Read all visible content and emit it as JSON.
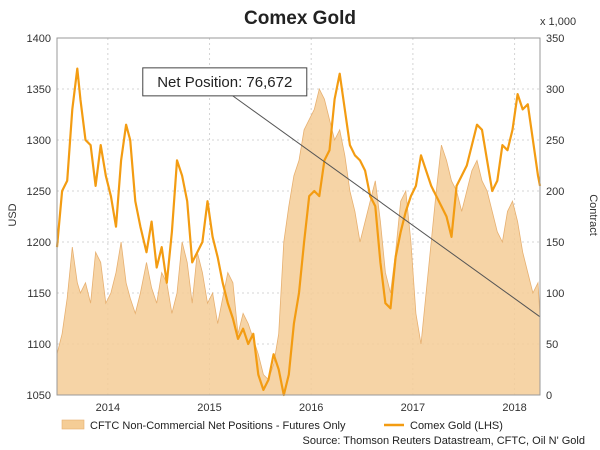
{
  "chart_data": {
    "type": "line",
    "title": "Comex Gold",
    "left_axis": {
      "label": "USD",
      "min": 1050,
      "max": 1400,
      "ticks": [
        1050,
        1100,
        1150,
        1200,
        1250,
        1300,
        1350,
        1400
      ]
    },
    "right_axis": {
      "label": "Contract",
      "multiplier_label": "x 1,000",
      "min": 0,
      "max": 350,
      "ticks": [
        0,
        50,
        100,
        150,
        200,
        250,
        300,
        350
      ]
    },
    "x_axis": {
      "ticks": [
        "2014",
        "2015",
        "2016",
        "2017",
        "2018"
      ],
      "tick_positions": [
        2014,
        2015,
        2016,
        2017,
        2018
      ],
      "min": 2013.5,
      "max": 2018.25
    },
    "grid": true,
    "legend_position": "bottom",
    "annotation": {
      "text": "Net Position: 76,672",
      "x": 2015.15,
      "y_price": 1357,
      "target_x": 2018.25,
      "target_net": 76.672
    },
    "source": "Source: Thomson Reuters Datastream, CFTC, Oil N' Gold",
    "series": [
      {
        "name": "Comex Gold (LHS)",
        "axis": "left",
        "color": "#f39c12",
        "x": [
          2013.5,
          2013.55,
          2013.6,
          2013.65,
          2013.7,
          2013.73,
          2013.78,
          2013.83,
          2013.88,
          2013.93,
          2013.98,
          2014.03,
          2014.08,
          2014.13,
          2014.18,
          2014.22,
          2014.27,
          2014.32,
          2014.38,
          2014.43,
          2014.48,
          2014.53,
          2014.58,
          2014.63,
          2014.68,
          2014.73,
          2014.78,
          2014.83,
          2014.88,
          2014.93,
          2014.98,
          2015.03,
          2015.08,
          2015.13,
          2015.18,
          2015.23,
          2015.28,
          2015.33,
          2015.38,
          2015.43,
          2015.48,
          2015.53,
          2015.58,
          2015.63,
          2015.68,
          2015.73,
          2015.78,
          2015.83,
          2015.88,
          2015.93,
          2015.98,
          2016.03,
          2016.08,
          2016.13,
          2016.18,
          2016.23,
          2016.28,
          2016.33,
          2016.38,
          2016.43,
          2016.48,
          2016.53,
          2016.58,
          2016.63,
          2016.68,
          2016.73,
          2016.78,
          2016.83,
          2016.88,
          2016.93,
          2016.98,
          2017.03,
          2017.08,
          2017.13,
          2017.18,
          2017.23,
          2017.28,
          2017.33,
          2017.38,
          2017.43,
          2017.48,
          2017.53,
          2017.58,
          2017.63,
          2017.68,
          2017.73,
          2017.78,
          2017.83,
          2017.88,
          2017.93,
          2017.98,
          2018.03,
          2018.08,
          2018.13,
          2018.18,
          2018.23,
          2018.25
        ],
        "y": [
          1195,
          1250,
          1260,
          1330,
          1370,
          1340,
          1300,
          1295,
          1255,
          1295,
          1265,
          1245,
          1215,
          1280,
          1315,
          1300,
          1240,
          1215,
          1190,
          1220,
          1175,
          1195,
          1160,
          1210,
          1280,
          1265,
          1240,
          1180,
          1190,
          1200,
          1240,
          1205,
          1185,
          1160,
          1140,
          1125,
          1105,
          1115,
          1100,
          1110,
          1070,
          1055,
          1065,
          1090,
          1075,
          1050,
          1070,
          1120,
          1150,
          1200,
          1245,
          1250,
          1245,
          1280,
          1290,
          1340,
          1365,
          1330,
          1295,
          1285,
          1280,
          1270,
          1245,
          1235,
          1180,
          1140,
          1135,
          1185,
          1210,
          1230,
          1245,
          1255,
          1285,
          1270,
          1255,
          1245,
          1235,
          1225,
          1205,
          1255,
          1265,
          1275,
          1295,
          1315,
          1310,
          1280,
          1250,
          1260,
          1295,
          1290,
          1310,
          1345,
          1330,
          1335,
          1300,
          1265,
          1255
        ]
      },
      {
        "name": "CFTC Non-Commercial Net Positions - Futures Only",
        "axis": "right",
        "color": "#f5cd96",
        "x": [
          2013.5,
          2013.55,
          2013.6,
          2013.65,
          2013.7,
          2013.73,
          2013.78,
          2013.83,
          2013.88,
          2013.93,
          2013.98,
          2014.03,
          2014.08,
          2014.13,
          2014.18,
          2014.22,
          2014.27,
          2014.32,
          2014.38,
          2014.43,
          2014.48,
          2014.53,
          2014.58,
          2014.63,
          2014.68,
          2014.73,
          2014.78,
          2014.83,
          2014.88,
          2014.93,
          2014.98,
          2015.03,
          2015.08,
          2015.13,
          2015.18,
          2015.23,
          2015.28,
          2015.33,
          2015.38,
          2015.43,
          2015.48,
          2015.53,
          2015.58,
          2015.63,
          2015.68,
          2015.73,
          2015.78,
          2015.83,
          2015.88,
          2015.93,
          2015.98,
          2016.03,
          2016.08,
          2016.13,
          2016.18,
          2016.23,
          2016.28,
          2016.33,
          2016.38,
          2016.43,
          2016.48,
          2016.53,
          2016.58,
          2016.63,
          2016.68,
          2016.73,
          2016.78,
          2016.83,
          2016.88,
          2016.93,
          2016.98,
          2017.03,
          2017.08,
          2017.13,
          2017.18,
          2017.23,
          2017.28,
          2017.33,
          2017.38,
          2017.43,
          2017.48,
          2017.53,
          2017.58,
          2017.63,
          2017.68,
          2017.73,
          2017.78,
          2017.83,
          2017.88,
          2017.93,
          2017.98,
          2018.03,
          2018.08,
          2018.13,
          2018.18,
          2018.23,
          2018.25
        ],
        "y": [
          40,
          60,
          95,
          145,
          110,
          100,
          110,
          90,
          140,
          130,
          90,
          100,
          120,
          150,
          110,
          95,
          80,
          100,
          130,
          105,
          90,
          120,
          110,
          80,
          100,
          150,
          130,
          90,
          140,
          120,
          90,
          100,
          70,
          95,
          120,
          110,
          60,
          80,
          70,
          55,
          40,
          20,
          15,
          30,
          60,
          150,
          185,
          215,
          230,
          260,
          270,
          280,
          300,
          290,
          270,
          250,
          260,
          235,
          200,
          180,
          150,
          170,
          190,
          210,
          170,
          120,
          100,
          140,
          190,
          200,
          150,
          80,
          50,
          100,
          150,
          200,
          245,
          230,
          210,
          200,
          180,
          200,
          220,
          230,
          210,
          200,
          180,
          160,
          150,
          180,
          190,
          170,
          140,
          120,
          100,
          110,
          77
        ]
      }
    ]
  }
}
